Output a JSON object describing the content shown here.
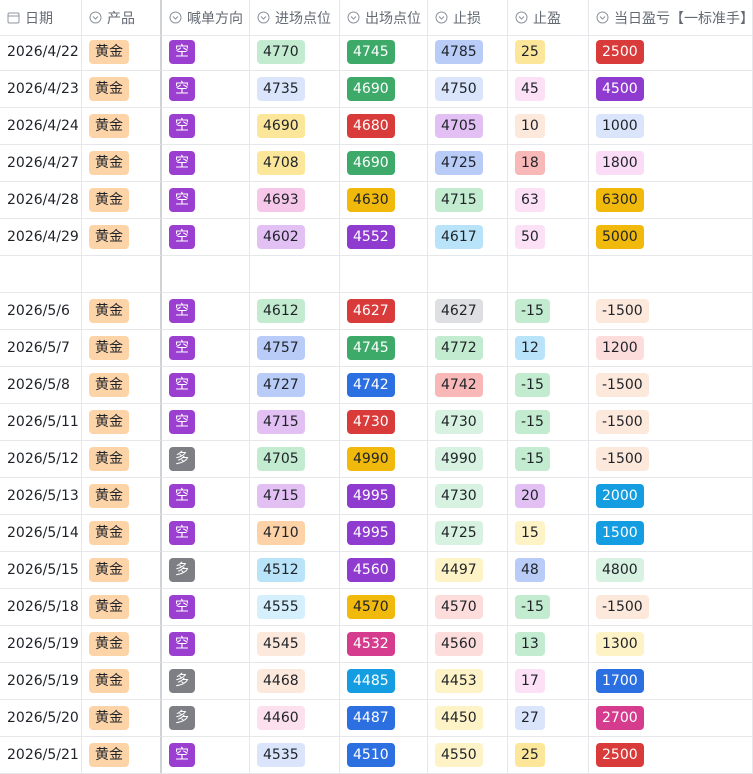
{
  "table": {
    "columns": [
      "日期",
      "产品",
      "喊单方向",
      "进场点位",
      "出场点位",
      "止损",
      "止盈",
      "当日盈亏【一标准手】"
    ],
    "groups": [
      {
        "rows": [
          [
            "2026/4/22",
            {
              "text": "黄金",
              "color": "#fdd4a8"
            },
            {
              "text": "空",
              "color": "#9b3fd0"
            },
            {
              "text": "4770",
              "color": "#c3ebcf"
            },
            {
              "text": "4745",
              "color": "#3daa6a"
            },
            {
              "text": "4785",
              "color": "#b9ccf8"
            },
            {
              "text": "25",
              "color": "#fbe69a"
            },
            {
              "text": "2500",
              "color": "#d93a3a"
            }
          ],
          [
            "2026/4/23",
            {
              "text": "黄金",
              "color": "#fdd4a8"
            },
            {
              "text": "空",
              "color": "#9b3fd0"
            },
            {
              "text": "4735",
              "color": "#dae5fc"
            },
            {
              "text": "4690",
              "color": "#3daa6a"
            },
            {
              "text": "4750",
              "color": "#dae5fc"
            },
            {
              "text": "45",
              "color": "#fbe0f6"
            },
            {
              "text": "4500",
              "color": "#8f3bd0"
            }
          ],
          [
            "2026/4/24",
            {
              "text": "黄金",
              "color": "#fdd4a8"
            },
            {
              "text": "空",
              "color": "#9b3fd0"
            },
            {
              "text": "4690",
              "color": "#fbe69a"
            },
            {
              "text": "4680",
              "color": "#d93a3a"
            },
            {
              "text": "4705",
              "color": "#e2c0f3"
            },
            {
              "text": "10",
              "color": "#fde9dc"
            },
            {
              "text": "1000",
              "color": "#dae5fc"
            }
          ],
          [
            "2026/4/27",
            {
              "text": "黄金",
              "color": "#fdd4a8"
            },
            {
              "text": "空",
              "color": "#9b3fd0"
            },
            {
              "text": "4708",
              "color": "#fbe69a"
            },
            {
              "text": "4690",
              "color": "#3daa6a"
            },
            {
              "text": "4725",
              "color": "#b9ccf8"
            },
            {
              "text": "18",
              "color": "#f8b8b8"
            },
            {
              "text": "1800",
              "color": "#fbdcf7"
            }
          ],
          [
            "2026/4/28",
            {
              "text": "黄金",
              "color": "#fdd4a8"
            },
            {
              "text": "空",
              "color": "#9b3fd0"
            },
            {
              "text": "4693",
              "color": "#f6c7e8"
            },
            {
              "text": "4630",
              "color": "#f0b90b"
            },
            {
              "text": "4715",
              "color": "#c3ebcf"
            },
            {
              "text": "63",
              "color": "#fbe0f6"
            },
            {
              "text": "6300",
              "color": "#f0b90b"
            }
          ],
          [
            "2026/4/29",
            {
              "text": "黄金",
              "color": "#fdd4a8"
            },
            {
              "text": "空",
              "color": "#9b3fd0"
            },
            {
              "text": "4602",
              "color": "#e2c0f3"
            },
            {
              "text": "4552",
              "color": "#8f3bd0"
            },
            {
              "text": "4617",
              "color": "#b9e3f9"
            },
            {
              "text": "50",
              "color": "#fbe0f6"
            },
            {
              "text": "5000",
              "color": "#f0b90b"
            }
          ]
        ]
      },
      {
        "rows": [
          [
            "2026/5/6",
            {
              "text": "黄金",
              "color": "#fdd4a8"
            },
            {
              "text": "空",
              "color": "#9b3fd0"
            },
            {
              "text": "4612",
              "color": "#c3ebcf"
            },
            {
              "text": "4627",
              "color": "#d93a3a"
            },
            {
              "text": "4627",
              "color": "#dedfe2"
            },
            {
              "text": "-15",
              "color": "#c3ebcf"
            },
            {
              "text": "-1500",
              "color": "#fde9dc"
            }
          ],
          [
            "2026/5/7",
            {
              "text": "黄金",
              "color": "#fdd4a8"
            },
            {
              "text": "空",
              "color": "#9b3fd0"
            },
            {
              "text": "4757",
              "color": "#b9ccf8"
            },
            {
              "text": "4745",
              "color": "#3daa6a"
            },
            {
              "text": "4772",
              "color": "#c3ebcf"
            },
            {
              "text": "12",
              "color": "#b9e3f9"
            },
            {
              "text": "1200",
              "color": "#fddcdc"
            }
          ],
          [
            "2026/5/8",
            {
              "text": "黄金",
              "color": "#fdd4a8"
            },
            {
              "text": "空",
              "color": "#9b3fd0"
            },
            {
              "text": "4727",
              "color": "#b9ccf8"
            },
            {
              "text": "4742",
              "color": "#2b6fe0"
            },
            {
              "text": "4742",
              "color": "#f8b8b8"
            },
            {
              "text": "-15",
              "color": "#c3ebcf"
            },
            {
              "text": "-1500",
              "color": "#fde9dc"
            }
          ],
          [
            "2026/5/11",
            {
              "text": "黄金",
              "color": "#fdd4a8"
            },
            {
              "text": "空",
              "color": "#9b3fd0"
            },
            {
              "text": "4715",
              "color": "#e2c0f3"
            },
            {
              "text": "4730",
              "color": "#d93a3a"
            },
            {
              "text": "4730",
              "color": "#d8f2e1"
            },
            {
              "text": "-15",
              "color": "#c3ebcf"
            },
            {
              "text": "-1500",
              "color": "#fde9dc"
            }
          ],
          [
            "2026/5/12",
            {
              "text": "黄金",
              "color": "#fdd4a8"
            },
            {
              "text": "多",
              "color": "#7d7f85"
            },
            {
              "text": "4705",
              "color": "#c3ebcf"
            },
            {
              "text": "4990",
              "color": "#f0b90b"
            },
            {
              "text": "4990",
              "color": "#d8f2e1"
            },
            {
              "text": "-15",
              "color": "#c3ebcf"
            },
            {
              "text": "-1500",
              "color": "#fde9dc"
            }
          ],
          [
            "2026/5/13",
            {
              "text": "黄金",
              "color": "#fdd4a8"
            },
            {
              "text": "空",
              "color": "#9b3fd0"
            },
            {
              "text": "4715",
              "color": "#e2c0f3"
            },
            {
              "text": "4995",
              "color": "#8f3bd0"
            },
            {
              "text": "4730",
              "color": "#d8f2e1"
            },
            {
              "text": "20",
              "color": "#e2c0f3"
            },
            {
              "text": "2000",
              "color": "#149de0"
            }
          ],
          [
            "2026/5/14",
            {
              "text": "黄金",
              "color": "#fdd4a8"
            },
            {
              "text": "空",
              "color": "#9b3fd0"
            },
            {
              "text": "4710",
              "color": "#fcd2a6"
            },
            {
              "text": "4995",
              "color": "#8f3bd0"
            },
            {
              "text": "4725",
              "color": "#d8f2e1"
            },
            {
              "text": "15",
              "color": "#fef3c6"
            },
            {
              "text": "1500",
              "color": "#149de0"
            }
          ],
          [
            "2026/5/15",
            {
              "text": "黄金",
              "color": "#fdd4a8"
            },
            {
              "text": "多",
              "color": "#7d7f85"
            },
            {
              "text": "4512",
              "color": "#b9e3f9"
            },
            {
              "text": "4560",
              "color": "#8f3bd0"
            },
            {
              "text": "4497",
              "color": "#fef3c6"
            },
            {
              "text": "48",
              "color": "#b9ccf8"
            },
            {
              "text": "4800",
              "color": "#d8f2e1"
            }
          ],
          [
            "2026/5/18",
            {
              "text": "黄金",
              "color": "#fdd4a8"
            },
            {
              "text": "空",
              "color": "#9b3fd0"
            },
            {
              "text": "4555",
              "color": "#d5f0fc"
            },
            {
              "text": "4570",
              "color": "#f0b90b"
            },
            {
              "text": "4570",
              "color": "#fddcdc"
            },
            {
              "text": "-15",
              "color": "#c3ebcf"
            },
            {
              "text": "-1500",
              "color": "#fde9dc"
            }
          ],
          [
            "2026/5/19",
            {
              "text": "黄金",
              "color": "#fdd4a8"
            },
            {
              "text": "空",
              "color": "#9b3fd0"
            },
            {
              "text": "4545",
              "color": "#fde9dc"
            },
            {
              "text": "4532",
              "color": "#d63c8e"
            },
            {
              "text": "4560",
              "color": "#fddcdc"
            },
            {
              "text": "13",
              "color": "#c3ebcf"
            },
            {
              "text": "1300",
              "color": "#fef3c6"
            }
          ],
          [
            "2026/5/19",
            {
              "text": "黄金",
              "color": "#fdd4a8"
            },
            {
              "text": "多",
              "color": "#7d7f85"
            },
            {
              "text": "4468",
              "color": "#fde9dc"
            },
            {
              "text": "4485",
              "color": "#149de0"
            },
            {
              "text": "4453",
              "color": "#fef3c6"
            },
            {
              "text": "17",
              "color": "#fbe0f6"
            },
            {
              "text": "1700",
              "color": "#2b6fe0"
            }
          ],
          [
            "2026/5/20",
            {
              "text": "黄金",
              "color": "#fdd4a8"
            },
            {
              "text": "多",
              "color": "#7d7f85"
            },
            {
              "text": "4460",
              "color": "#fce0ee"
            },
            {
              "text": "4487",
              "color": "#2b6fe0"
            },
            {
              "text": "4450",
              "color": "#fef3c6"
            },
            {
              "text": "27",
              "color": "#dae5fc"
            },
            {
              "text": "2700",
              "color": "#d63c8e"
            }
          ],
          [
            "2026/5/21",
            {
              "text": "黄金",
              "color": "#fdd4a8"
            },
            {
              "text": "空",
              "color": "#9b3fd0"
            },
            {
              "text": "4535",
              "color": "#dae5fc"
            },
            {
              "text": "4510",
              "color": "#2b6fe0"
            },
            {
              "text": "4550",
              "color": "#fef3c6"
            },
            {
              "text": "25",
              "color": "#fbe69a"
            },
            {
              "text": "2500",
              "color": "#d93a3a"
            }
          ]
        ]
      }
    ]
  }
}
